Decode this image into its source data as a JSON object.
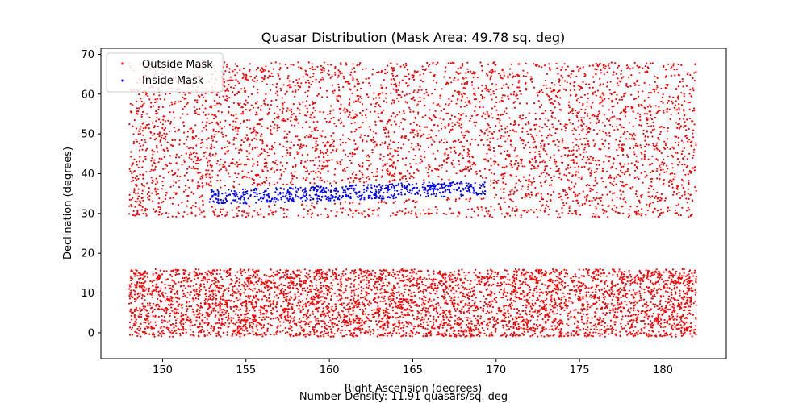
{
  "chart_data": {
    "type": "scatter",
    "title": "Quasar Distribution (Mask Area: 49.78 sq. deg)",
    "xlabel": "Right Ascension (degrees)",
    "ylabel": "Declination (degrees)",
    "footer": "Number Density: 11.91 quasars/sq. deg",
    "xlim": [
      146.3,
      183.8
    ],
    "ylim": [
      -6.5,
      71.5
    ],
    "xticks": [
      150,
      155,
      160,
      165,
      170,
      175,
      180
    ],
    "yticks": [
      0,
      10,
      20,
      30,
      40,
      50,
      60,
      70
    ],
    "grid": false,
    "legend_placement": "top-left",
    "series": [
      {
        "name": "Outside Mask",
        "color": "#ff0000",
        "regions": [
          {
            "ra": [
              148,
              182
            ],
            "dec": [
              -1,
              16
            ]
          },
          {
            "ra": [
              148,
              182
            ],
            "dec": [
              29,
              68
            ]
          }
        ]
      },
      {
        "name": "Inside Mask",
        "color": "#0000ff",
        "regions": [
          {
            "ra": [
              152.8,
              169.4
            ],
            "dec": [
              32.5,
              38
            ]
          }
        ]
      }
    ]
  }
}
